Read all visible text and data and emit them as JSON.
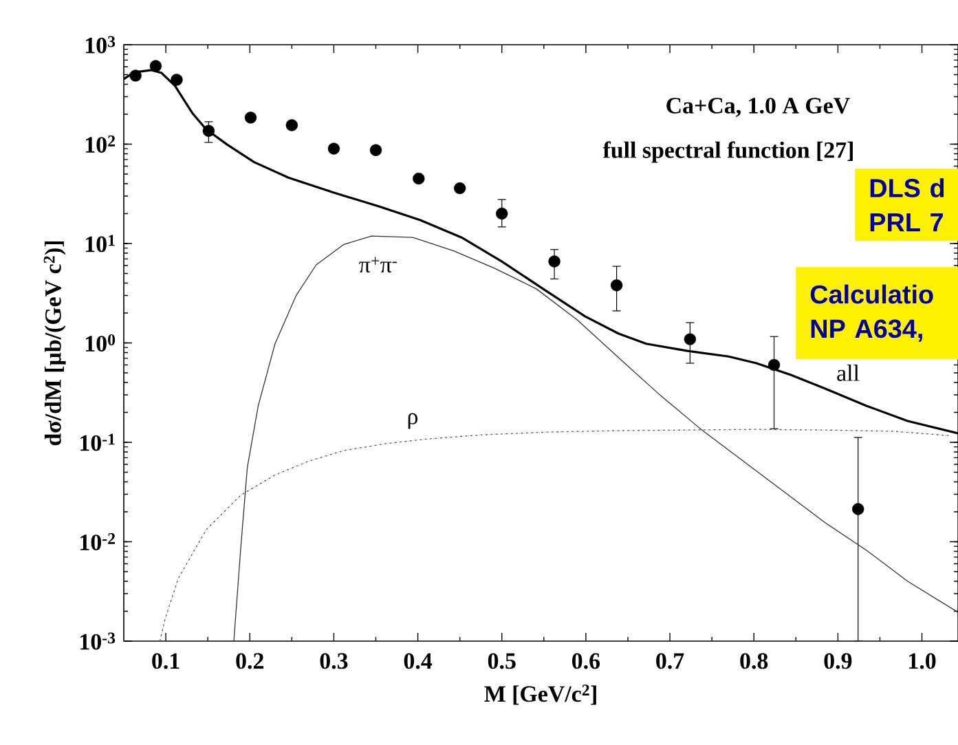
{
  "chart_data": {
    "type": "line",
    "title": "Ca+Ca,  1.0 A GeV",
    "subtitle": "full spectral function [27]",
    "xlabel": "M [GeV/c$^{2}$]",
    "ylabel": "dσ/dM  [μb/(GeV c$^{2}$)]",
    "log": "y",
    "marker": "circle",
    "xlim": [
      0.05,
      1.043
    ],
    "ylim": [
      0.001,
      1000
    ],
    "xticks": [
      {
        "value": 0.1,
        "label": "0.1"
      },
      {
        "value": 0.2,
        "label": "0.2"
      },
      {
        "value": 0.3,
        "label": "0.3"
      },
      {
        "value": 0.4,
        "label": "0.4"
      },
      {
        "value": 0.5,
        "label": "0.5"
      },
      {
        "value": 0.6,
        "label": "0.6"
      },
      {
        "value": 0.7,
        "label": "0.7"
      },
      {
        "value": 0.8,
        "label": "0.8"
      },
      {
        "value": 0.9,
        "label": "0.9"
      },
      {
        "value": 1.0,
        "label": "1.0"
      }
    ],
    "yticks": [
      {
        "value": 0.001,
        "label": "10$^{-3}$"
      },
      {
        "value": 0.01,
        "label": "10$^{-2}$"
      },
      {
        "value": 0.1,
        "label": "10$^{-1}$"
      },
      {
        "value": 1,
        "label": "10$^{0}$"
      },
      {
        "value": 10,
        "label": "10$^{1}$"
      },
      {
        "value": 100,
        "label": "10$^{2}$"
      },
      {
        "value": 1000,
        "label": "10$^{3}$"
      }
    ],
    "series": [
      {
        "type": "scatter",
        "color": "#000000",
        "x": [
          0.064,
          0.088,
          0.113,
          0.151,
          0.201,
          0.25,
          0.3,
          0.35,
          0.401,
          0.45,
          0.5,
          0.5625,
          0.6366,
          0.724,
          0.824,
          0.924
        ],
        "values": [
          489,
          610,
          444,
          136,
          185,
          155,
          90,
          87,
          45,
          36,
          20,
          6.6,
          3.8,
          1.09,
          0.6,
          0.0213
        ],
        "errors": [
          null,
          null,
          null,
          [
            104,
            168
          ],
          null,
          null,
          null,
          null,
          null,
          null,
          [
            14.7,
            27.7
          ],
          [
            4.4,
            8.7
          ],
          [
            2.1,
            5.9
          ],
          [
            0.625,
            1.6
          ],
          [
            0.137,
            1.16
          ],
          [
            0.001,
            0.112
          ]
        ]
      },
      {
        "line_style": "solid",
        "marker": "none",
        "color": "#000000",
        "x": [
          0.05,
          0.062,
          0.083,
          0.095,
          0.111,
          0.132,
          0.148,
          0.173,
          0.205,
          0.246,
          0.3,
          0.353,
          0.403,
          0.452,
          0.5,
          0.549,
          0.599,
          0.639,
          0.672,
          0.721,
          0.77,
          0.803,
          0.844,
          0.885,
          0.934,
          0.983,
          1.043
        ],
        "values": [
          451,
          528,
          555,
          520,
          385,
          203,
          141,
          99,
          66,
          46,
          32.5,
          23.7,
          17.2,
          11.5,
          6.6,
          3.5,
          1.85,
          1.24,
          0.98,
          0.83,
          0.73,
          0.625,
          0.476,
          0.347,
          0.233,
          0.164,
          0.123
        ]
      },
      {
        "line_style": "solid",
        "marker": "none",
        "color": "#333333",
        "x": [
          0.181,
          0.189,
          0.197,
          0.21,
          0.23,
          0.255,
          0.279,
          0.312,
          0.345,
          0.394,
          0.443,
          0.492,
          0.541,
          0.59,
          0.639,
          0.689,
          0.738,
          0.787,
          0.836,
          0.885,
          0.934,
          0.983,
          1.043
        ],
        "values": [
          0.001,
          0.0082,
          0.0555,
          0.233,
          0.98,
          2.98,
          6.1,
          9.8,
          11.9,
          11.5,
          8.4,
          5.6,
          3.5,
          1.7,
          0.71,
          0.295,
          0.133,
          0.065,
          0.0318,
          0.0155,
          0.0082,
          0.004,
          0.00195
        ]
      },
      {
        "line_style": "dashed",
        "marker": "none",
        "color": "#555555",
        "x": [
          0.093,
          0.099,
          0.115,
          0.148,
          0.189,
          0.23,
          0.271,
          0.312,
          0.361,
          0.411,
          0.476,
          0.557,
          0.639,
          0.721,
          0.803,
          0.885,
          0.967,
          1.032
        ],
        "values": [
          0.001,
          0.00166,
          0.0043,
          0.0132,
          0.0293,
          0.047,
          0.065,
          0.0826,
          0.0968,
          0.108,
          0.119,
          0.127,
          0.131,
          0.133,
          0.135,
          0.133,
          0.129,
          0.117
        ]
      }
    ],
    "annotations": [
      "π$^{+}$π$^{-}$",
      "ρ",
      "all",
      "DLS d",
      "PRL 7",
      "Calculatio",
      "NP A634,"
    ]
  }
}
